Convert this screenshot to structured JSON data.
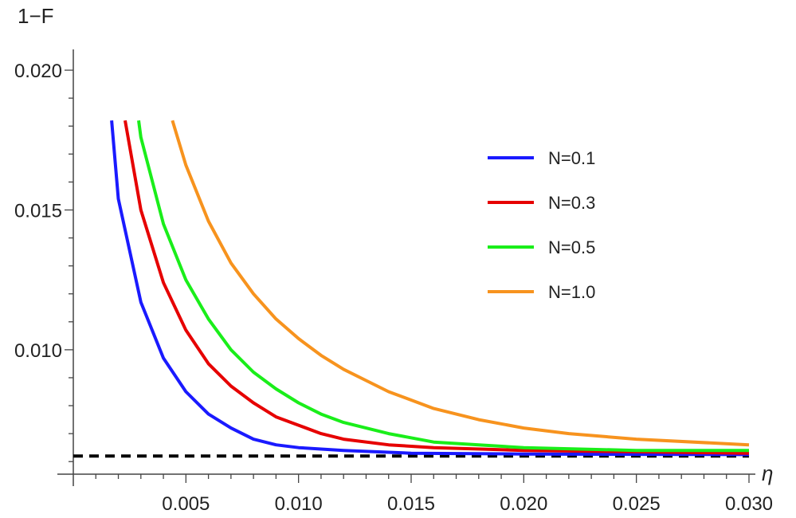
{
  "chart_data": {
    "type": "line",
    "title": "",
    "xlabel": "η",
    "ylabel": "1−F",
    "xlim": [
      0,
      0.03
    ],
    "ylim": [
      0.00555,
      0.0208
    ],
    "x_ticks": [
      "0.005",
      "0.010",
      "0.015",
      "0.020",
      "0.025",
      "0.030"
    ],
    "y_ticks": [
      "0.010",
      "0.015",
      "0.020"
    ],
    "legend_position": "top-right",
    "grid": false,
    "series": [
      {
        "name": "N=0.1",
        "color": "#1a1aff",
        "x": [
          0.0017,
          0.002,
          0.003,
          0.004,
          0.005,
          0.006,
          0.007,
          0.008,
          0.009,
          0.01,
          0.012,
          0.015,
          0.02,
          0.025,
          0.03
        ],
        "y": [
          0.0182,
          0.0154,
          0.0117,
          0.0097,
          0.0085,
          0.0077,
          0.0072,
          0.0068,
          0.0066,
          0.0065,
          0.0064,
          0.0063,
          0.00627,
          0.00626,
          0.00625
        ]
      },
      {
        "name": "N=0.3",
        "color": "#e60000",
        "x": [
          0.0023,
          0.003,
          0.004,
          0.005,
          0.006,
          0.007,
          0.008,
          0.009,
          0.01,
          0.011,
          0.012,
          0.014,
          0.016,
          0.02,
          0.025,
          0.03
        ],
        "y": [
          0.0182,
          0.015,
          0.0124,
          0.0107,
          0.0095,
          0.0087,
          0.0081,
          0.0076,
          0.0073,
          0.007,
          0.0068,
          0.0066,
          0.0065,
          0.0064,
          0.00635,
          0.0063
        ]
      },
      {
        "name": "N=0.5",
        "color": "#1aee1a",
        "x": [
          0.0029,
          0.003,
          0.004,
          0.005,
          0.006,
          0.007,
          0.008,
          0.009,
          0.01,
          0.011,
          0.012,
          0.014,
          0.016,
          0.018,
          0.02,
          0.025,
          0.03
        ],
        "y": [
          0.0182,
          0.0176,
          0.0145,
          0.0125,
          0.0111,
          0.01,
          0.0092,
          0.0086,
          0.0081,
          0.0077,
          0.0074,
          0.007,
          0.0067,
          0.0066,
          0.0065,
          0.0064,
          0.0064
        ]
      },
      {
        "name": "N=1.0",
        "color": "#f7931e",
        "x": [
          0.0044,
          0.005,
          0.006,
          0.007,
          0.008,
          0.009,
          0.01,
          0.011,
          0.012,
          0.013,
          0.014,
          0.015,
          0.016,
          0.018,
          0.02,
          0.022,
          0.025,
          0.03
        ],
        "y": [
          0.0182,
          0.0166,
          0.0146,
          0.0131,
          0.012,
          0.0111,
          0.0104,
          0.0098,
          0.0093,
          0.0089,
          0.0085,
          0.0082,
          0.0079,
          0.0075,
          0.0072,
          0.007,
          0.0068,
          0.0066
        ]
      }
    ],
    "reference_line": {
      "y": 0.0062,
      "color": "#000000",
      "style": "dashed"
    }
  }
}
